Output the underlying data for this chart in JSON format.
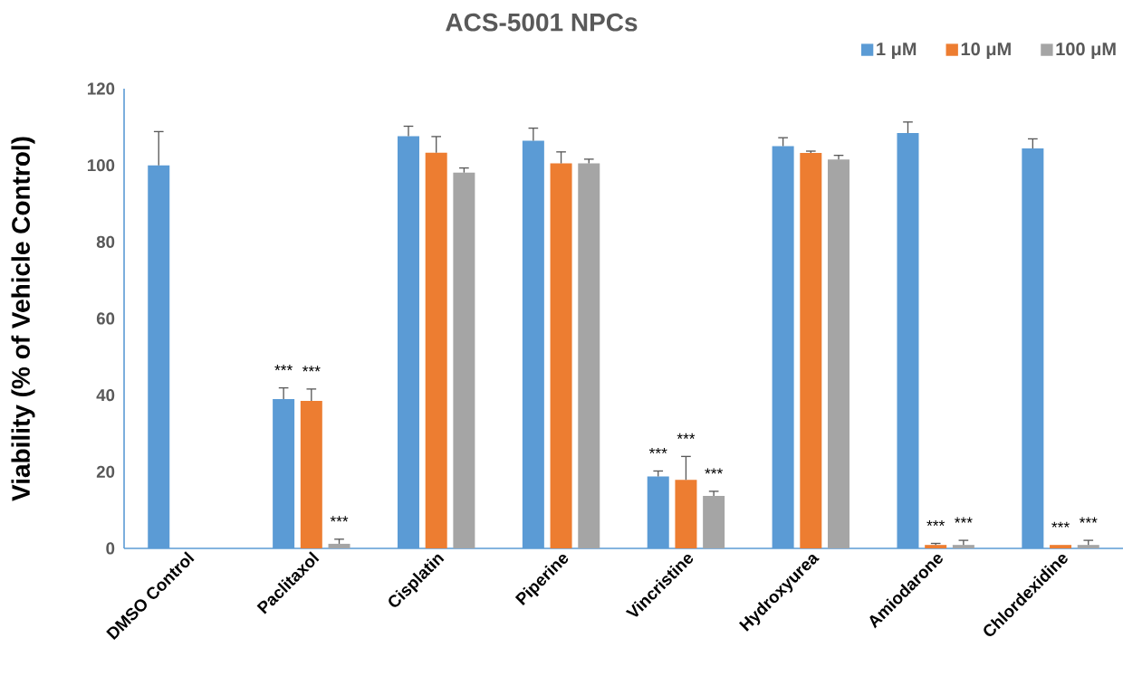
{
  "chart_data": {
    "type": "bar",
    "title": "ACS-5001 NPCs",
    "ylabel": "Viability (% of Vehicle Control)",
    "categories": [
      "DMSO Control",
      "Paclitaxol",
      "Cisplatin",
      "Piperine",
      "Vincristine",
      "Hydroxyurea",
      "Amiodarone",
      "Chlordexidine"
    ],
    "ylim": [
      0,
      120
    ],
    "yticks": [
      0,
      20,
      40,
      60,
      80,
      100,
      120
    ],
    "legend": "top right",
    "series": [
      {
        "name": "1 μM",
        "color": "#5b9bd5",
        "values": [
          100,
          39.0,
          107.6,
          106.4,
          18.8,
          105.0,
          108.4,
          104.4
        ],
        "errors": [
          [
            100,
            108.8
          ],
          [
            39.0,
            41.9
          ],
          [
            107.6,
            110.2
          ],
          [
            106.4,
            109.7
          ],
          [
            18.8,
            20.2
          ],
          [
            105.0,
            107.2
          ],
          [
            108.4,
            111.3
          ],
          [
            104.4,
            106.9
          ]
        ],
        "value_labels": [
          null,
          "***",
          null,
          null,
          "***",
          null,
          null,
          null
        ]
      },
      {
        "name": "10 μM",
        "color": "#ed7d31",
        "values": [
          null,
          38.5,
          103.3,
          100.5,
          17.9,
          103.2,
          0.9,
          0.9
        ],
        "errors": [
          null,
          [
            38.5,
            41.6
          ],
          [
            103.3,
            107.5
          ],
          [
            100.5,
            103.5
          ],
          [
            17.9,
            24.0
          ],
          [
            103.2,
            103.7
          ],
          [
            0.9,
            1.3
          ],
          null
        ],
        "value_labels": [
          null,
          "***",
          null,
          null,
          "***",
          null,
          "***",
          "***"
        ]
      },
      {
        "name": "100 μM",
        "color": "#a5a5a5",
        "values": [
          null,
          1.2,
          98.1,
          100.5,
          13.7,
          101.5,
          0.9,
          0.9
        ],
        "errors": [
          null,
          [
            1.2,
            2.4
          ],
          [
            98.1,
            99.3
          ],
          [
            100.5,
            101.6
          ],
          [
            13.7,
            14.9
          ],
          [
            101.5,
            102.6
          ],
          [
            0.9,
            2.1
          ],
          [
            0.9,
            2.1
          ]
        ],
        "value_labels": [
          null,
          "***",
          null,
          null,
          "***",
          null,
          "***",
          "***"
        ]
      }
    ]
  }
}
